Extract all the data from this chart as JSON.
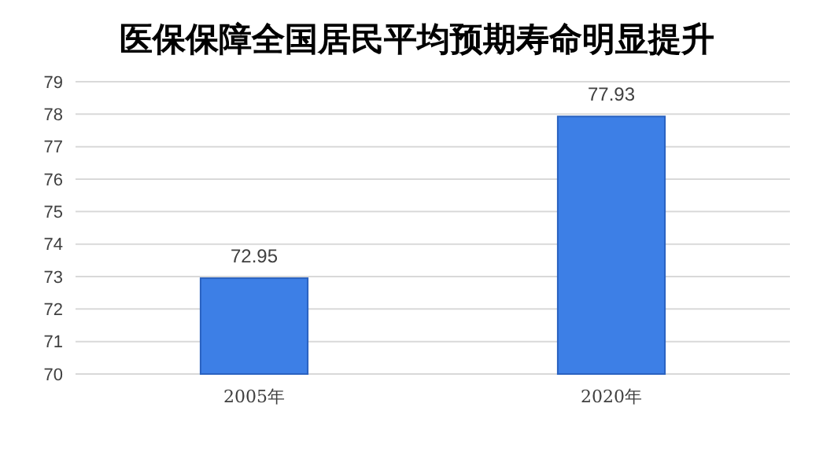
{
  "chart_data": {
    "type": "bar",
    "title": "医保保障全国居民平均预期寿命明显提升",
    "categories": [
      "2005年",
      "2020年"
    ],
    "values": [
      72.95,
      77.93
    ],
    "color": "#3d7fe6",
    "ylim": [
      70,
      79
    ],
    "yticks": [
      70,
      71,
      72,
      73,
      74,
      75,
      76,
      77,
      78,
      79
    ],
    "grid": "y",
    "data_labels": true
  }
}
